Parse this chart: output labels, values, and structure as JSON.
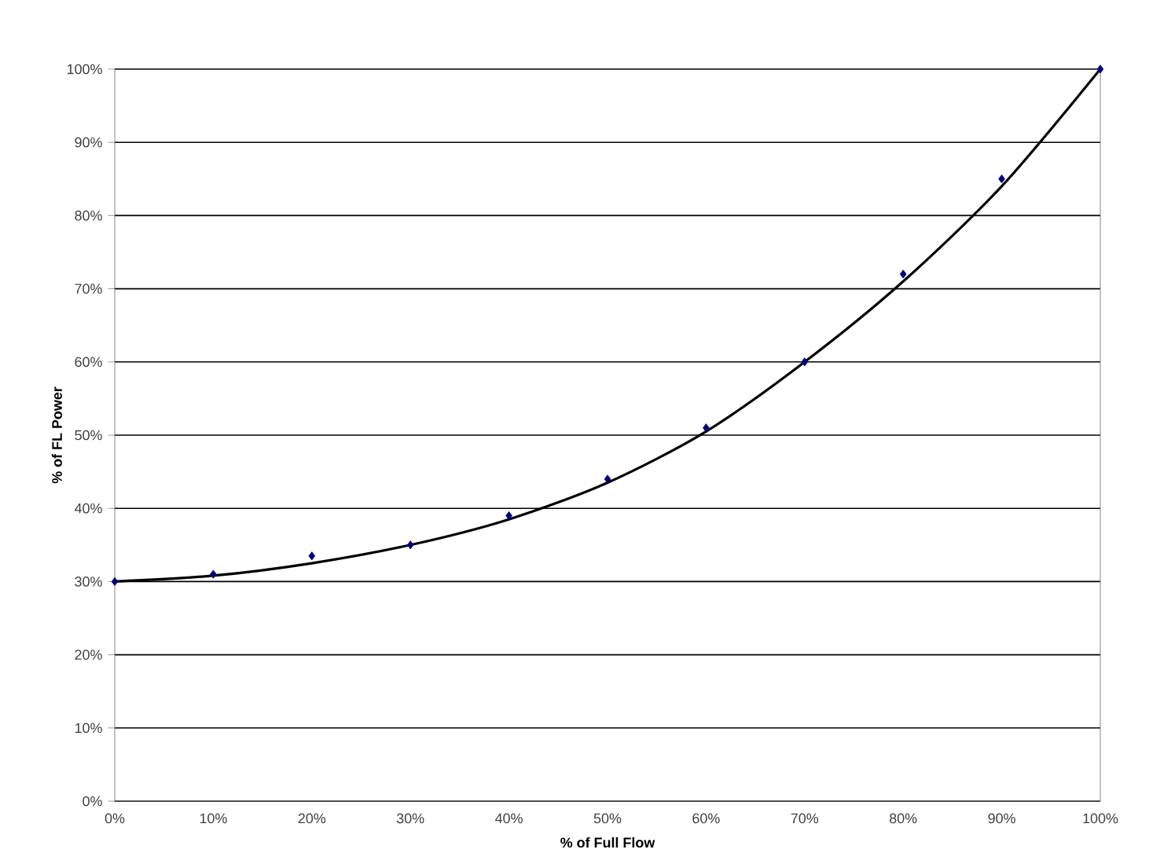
{
  "chart_data": {
    "type": "scatter",
    "xlabel": "% of Full Flow",
    "ylabel": "% of FL Power",
    "xlim": [
      0,
      100
    ],
    "ylim": [
      0,
      100
    ],
    "xticks": [
      {
        "value": 0,
        "label": "0%"
      },
      {
        "value": 10,
        "label": "10%"
      },
      {
        "value": 20,
        "label": "20%"
      },
      {
        "value": 30,
        "label": "30%"
      },
      {
        "value": 40,
        "label": "40%"
      },
      {
        "value": 50,
        "label": "50%"
      },
      {
        "value": 60,
        "label": "60%"
      },
      {
        "value": 70,
        "label": "70%"
      },
      {
        "value": 80,
        "label": "80%"
      },
      {
        "value": 90,
        "label": "90%"
      },
      {
        "value": 100,
        "label": "100%"
      }
    ],
    "yticks": [
      {
        "value": 0,
        "label": "0%"
      },
      {
        "value": 10,
        "label": "10%"
      },
      {
        "value": 20,
        "label": "20%"
      },
      {
        "value": 30,
        "label": "30%"
      },
      {
        "value": 40,
        "label": "40%"
      },
      {
        "value": 50,
        "label": "50%"
      },
      {
        "value": 60,
        "label": "60%"
      },
      {
        "value": 70,
        "label": "70%"
      },
      {
        "value": 80,
        "label": "80%"
      },
      {
        "value": 90,
        "label": "90%"
      },
      {
        "value": 100,
        "label": "100%"
      }
    ],
    "grid": "y",
    "series": [
      {
        "marker": "diamond",
        "color": "#000080",
        "x": [
          0,
          10,
          20,
          30,
          40,
          50,
          60,
          70,
          80,
          90,
          100
        ],
        "values": [
          30,
          31,
          33.5,
          35,
          39,
          44,
          51,
          60,
          72,
          85,
          100
        ]
      },
      {
        "type": "line",
        "marker": "none",
        "line_style": "solid",
        "color": "#000000",
        "x": [
          0,
          10,
          20,
          30,
          40,
          50,
          60,
          70,
          80,
          90,
          100
        ],
        "values": [
          30,
          30.8,
          32.5,
          35,
          38.5,
          43.5,
          50.5,
          60,
          71,
          84,
          100
        ]
      }
    ]
  }
}
